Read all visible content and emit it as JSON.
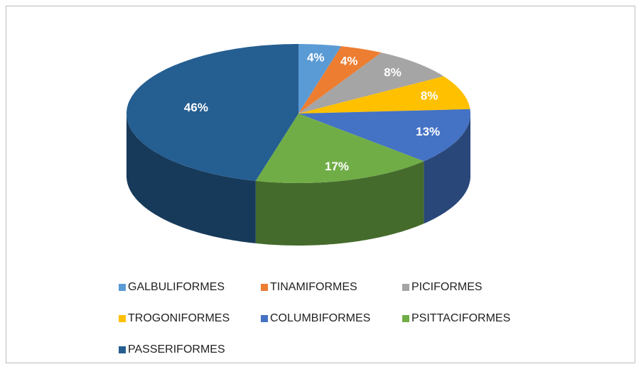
{
  "chart_data": {
    "type": "pie",
    "categories": [
      "GALBULIFORMES",
      "TINAMIFORMES",
      "PICIFORMES",
      "TROGONIFORMES",
      "COLUMBIFORMES",
      "PSITTACIFORMES",
      "PASSERIFORMES"
    ],
    "values": [
      4,
      4,
      8,
      8,
      13,
      17,
      46
    ],
    "value_labels": [
      "4%",
      "4%",
      "8%",
      "8%",
      "13%",
      "17%",
      "46%"
    ],
    "colors": [
      "#5b9bd5",
      "#ed7d31",
      "#a5a5a5",
      "#ffc000",
      "#4472c4",
      "#70ad47",
      "#255e91"
    ],
    "legend": "bottom"
  }
}
